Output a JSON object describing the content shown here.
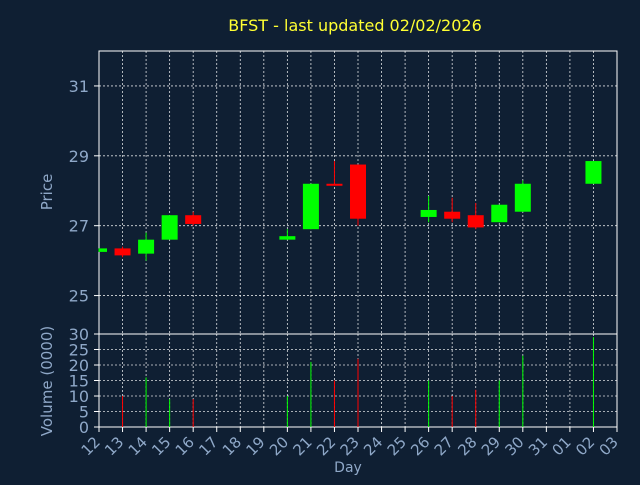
{
  "chart_data": {
    "type": "candlestick",
    "title": "BFST - last updated 02/02/2026",
    "xlabel": "Day",
    "price_ylabel": "Price",
    "volume_ylabel": "Volume (0000)",
    "price_ylim": [
      23.9,
      32.0
    ],
    "price_yticks": [
      25,
      27,
      29,
      31
    ],
    "volume_ylim": [
      0,
      30
    ],
    "volume_yticks": [
      0,
      5,
      10,
      15,
      20,
      25,
      30
    ],
    "xticks": [
      "12",
      "13",
      "14",
      "15",
      "16",
      "17",
      "18",
      "19",
      "20",
      "21",
      "22",
      "23",
      "24",
      "25",
      "26",
      "27",
      "28",
      "29",
      "30",
      "31",
      "01",
      "02",
      "03"
    ],
    "grid": true,
    "colors": {
      "background": "#0f1f33",
      "axis": "#ffffff",
      "grid": "#ffffff",
      "tick_label": "#8fa8c8",
      "title": "#ffff33",
      "up": "#00ff00",
      "down": "#ff0000"
    },
    "candles": [
      {
        "day": "12",
        "open": 26.25,
        "close": 26.35,
        "high": 26.35,
        "low": 26.25,
        "volume": 0
      },
      {
        "day": "13",
        "open": 26.35,
        "close": 26.15,
        "high": 26.4,
        "low": 26.1,
        "volume": 10
      },
      {
        "day": "14",
        "open": 26.2,
        "close": 26.6,
        "high": 26.8,
        "low": 26.0,
        "volume": 16
      },
      {
        "day": "15",
        "open": 26.6,
        "close": 27.3,
        "high": 27.3,
        "low": 26.6,
        "volume": 9
      },
      {
        "day": "16",
        "open": 27.3,
        "close": 27.05,
        "high": 27.4,
        "low": 27.0,
        "volume": 9
      },
      {
        "day": "20",
        "open": 26.6,
        "close": 26.7,
        "high": 26.9,
        "low": 26.6,
        "volume": 10
      },
      {
        "day": "21",
        "open": 26.9,
        "close": 28.2,
        "high": 28.2,
        "low": 26.9,
        "volume": 21
      },
      {
        "day": "22",
        "open": 28.2,
        "close": 28.15,
        "high": 28.85,
        "low": 28.15,
        "volume": 15
      },
      {
        "day": "23",
        "open": 28.75,
        "close": 27.2,
        "high": 28.75,
        "low": 27.0,
        "volume": 22
      },
      {
        "day": "26",
        "open": 27.25,
        "close": 27.45,
        "high": 27.85,
        "low": 27.1,
        "volume": 15
      },
      {
        "day": "27",
        "open": 27.4,
        "close": 27.2,
        "high": 27.8,
        "low": 27.1,
        "volume": 10
      },
      {
        "day": "28",
        "open": 27.3,
        "close": 26.95,
        "high": 27.65,
        "low": 26.9,
        "volume": 12
      },
      {
        "day": "29",
        "open": 27.1,
        "close": 27.6,
        "high": 27.6,
        "low": 27.1,
        "volume": 15
      },
      {
        "day": "30",
        "open": 27.4,
        "close": 28.2,
        "high": 28.3,
        "low": 27.4,
        "volume": 23
      },
      {
        "day": "02",
        "open": 28.2,
        "close": 28.85,
        "high": 28.85,
        "low": 28.2,
        "volume": 29
      }
    ]
  }
}
